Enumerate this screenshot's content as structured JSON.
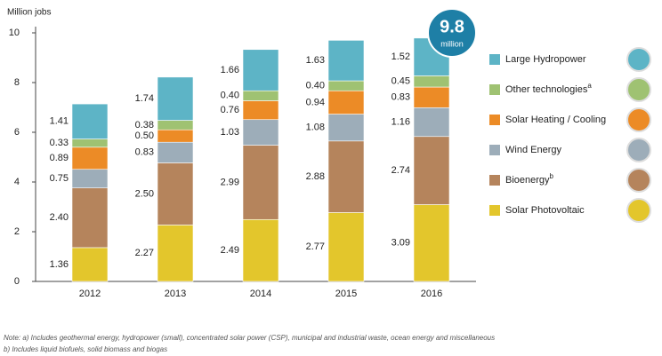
{
  "chart_data": {
    "type": "stacked-bar",
    "y_label": "Million jobs",
    "categories": [
      "2012",
      "2013",
      "2014",
      "2015",
      "2016"
    ],
    "ylim": [
      0,
      10
    ],
    "yticks": [
      0,
      2,
      4,
      6,
      8,
      10
    ],
    "series": [
      {
        "name": "Solar Photovoltaic",
        "color": "#e3c62c",
        "values": [
          1.36,
          2.27,
          2.49,
          2.77,
          3.09
        ],
        "value_labels": [
          "1.36",
          "2.27",
          "2.49",
          "2.77",
          "3.09"
        ]
      },
      {
        "name": "Bioenergy",
        "marker": "b",
        "color": "#b5845c",
        "values": [
          2.4,
          2.5,
          2.99,
          2.88,
          2.74
        ],
        "value_labels": [
          "2.40",
          "2.50",
          "2.99",
          "2.88",
          "2.74"
        ]
      },
      {
        "name": "Wind Energy",
        "color": "#9dadb9",
        "values": [
          0.75,
          0.83,
          1.03,
          1.08,
          1.16
        ],
        "value_labels": [
          "0.75",
          "0.83",
          "1.03",
          "1.08",
          "1.16"
        ]
      },
      {
        "name": "Solar Heating / Cooling",
        "color": "#ec8b26",
        "values": [
          0.89,
          0.5,
          0.76,
          0.94,
          0.83
        ],
        "value_labels": [
          "0.89",
          "0.50",
          "0.76",
          "0.94",
          "0.83"
        ]
      },
      {
        "name": "Other technologies",
        "marker": "a",
        "color": "#9fc272",
        "values": [
          0.33,
          0.38,
          0.4,
          0.4,
          0.45
        ],
        "value_labels": [
          "0.33",
          "0.38",
          "0.40",
          "0.40",
          "0.45"
        ]
      },
      {
        "name": "Large Hydropower",
        "color": "#5db4c6",
        "values": [
          1.41,
          1.74,
          1.66,
          1.63,
          1.52
        ],
        "value_labels": [
          "1.41",
          "1.74",
          "1.66",
          "1.63",
          "1.52"
        ]
      }
    ],
    "badge": {
      "value": "9.8",
      "unit": "million"
    },
    "notes": [
      "Note: a) Includes geothermal energy, hydropower (small), concentrated solar power (CSP), municipal and industrial waste, ocean energy and miscellaneous",
      "b) Includes liquid biofuels, solid biomass and biogas"
    ]
  }
}
